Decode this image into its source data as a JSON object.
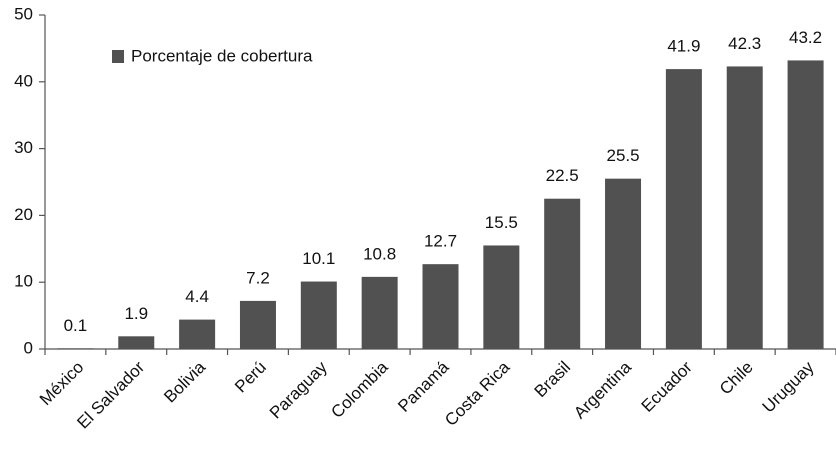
{
  "chart_data": {
    "type": "bar",
    "categories": [
      "México",
      "El Salvador",
      "Bolivia",
      "Perú",
      "Paraguay",
      "Colombia",
      "Panamá",
      "Costa Rica",
      "Brasil",
      "Argentina",
      "Ecuador",
      "Chile",
      "Uruguay"
    ],
    "series": [
      {
        "name": "Porcentaje de cobertura",
        "color": "#515151",
        "values": [
          0.1,
          1.9,
          4.4,
          7.2,
          10.1,
          10.8,
          12.7,
          15.5,
          22.5,
          25.5,
          41.9,
          42.3,
          43.2
        ]
      }
    ],
    "ylim": [
      0,
      50
    ],
    "yticks": [
      0,
      10,
      20,
      30,
      40,
      50
    ],
    "grid": false,
    "legend": "upper-left"
  }
}
